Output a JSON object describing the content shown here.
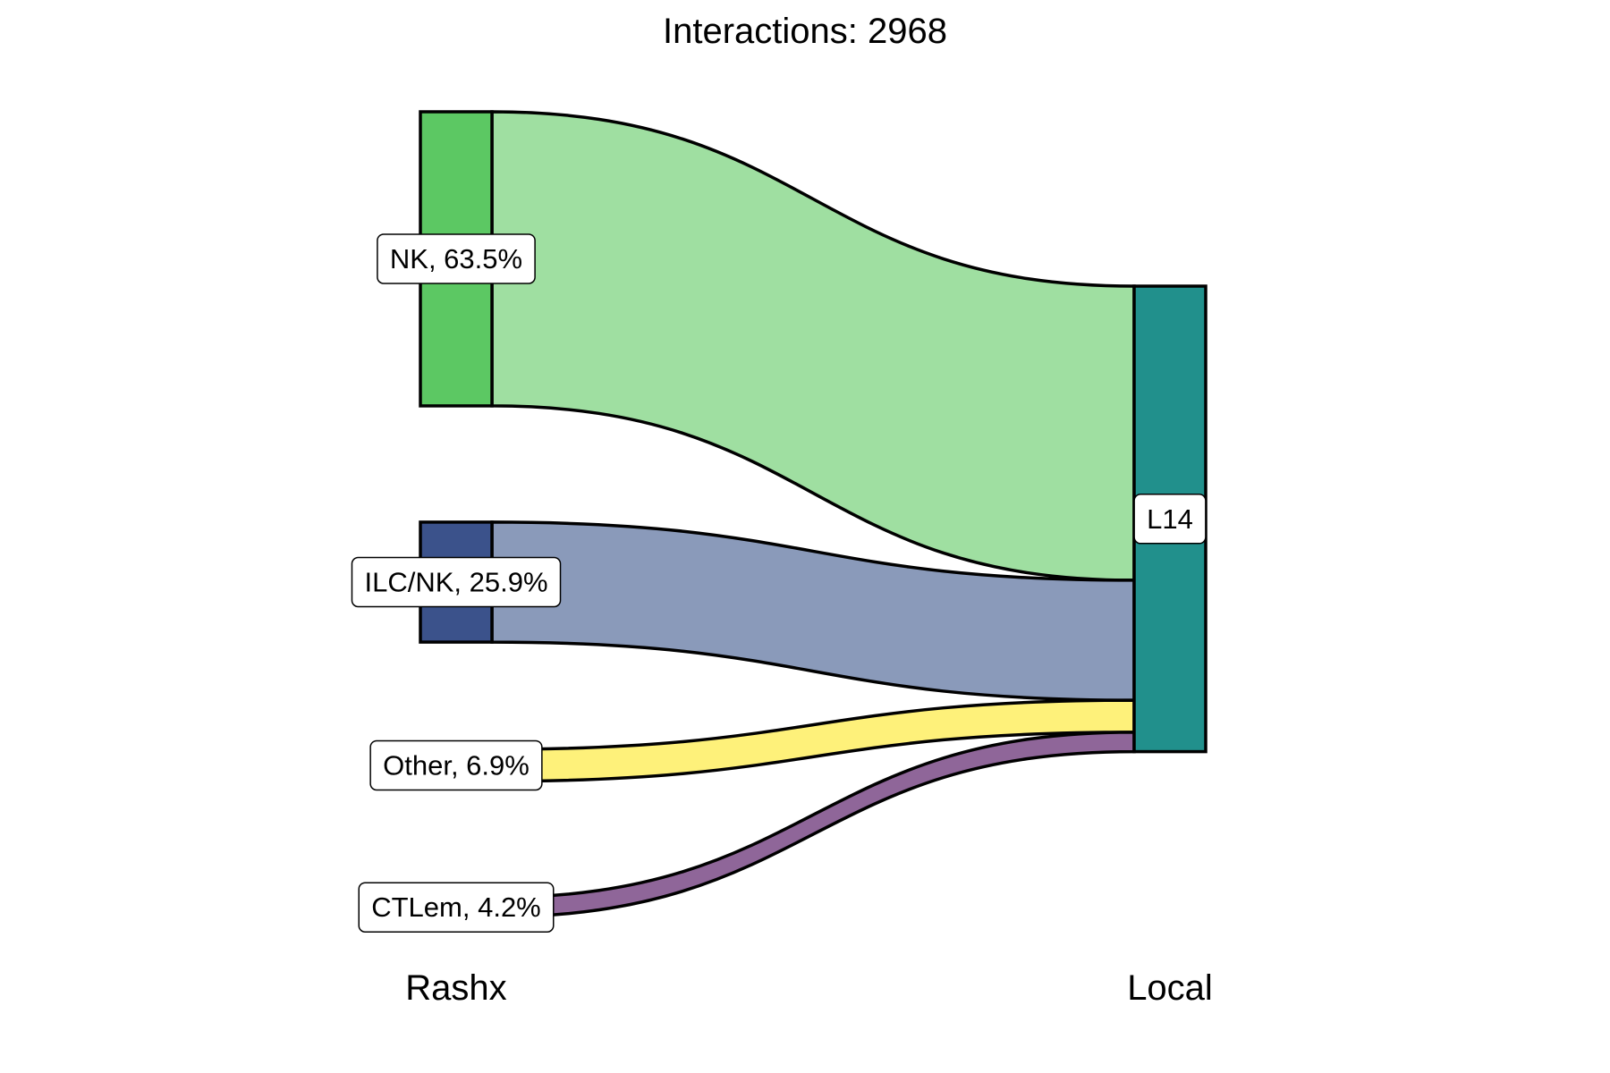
{
  "chart_data": {
    "type": "sankey",
    "title": "Interactions: 2968",
    "axes": [
      "Rashx",
      "Local"
    ],
    "total": 2968,
    "sources": [
      {
        "label": "NK, 63.5%",
        "name": "NK",
        "percent": 63.5,
        "node_color": "#5cc863",
        "flow_color": "#9fdfa1",
        "show_node": true
      },
      {
        "label": "ILC/NK, 25.9%",
        "name": "ILC/NK",
        "percent": 25.9,
        "node_color": "#3b528b",
        "flow_color": "#8a9aba",
        "show_node": true
      },
      {
        "label": "Other, 6.9%",
        "name": "Other",
        "percent": 6.9,
        "node_color": "#fde725",
        "flow_color": "#fef17a",
        "show_node": false
      },
      {
        "label": "CTLem, 4.2%",
        "name": "CTLem",
        "percent": 4.2,
        "node_color": "#440154",
        "flow_color": "#8f6699",
        "show_node": false
      }
    ],
    "targets": [
      {
        "label": "L14",
        "name": "L14",
        "percent": 100,
        "node_color": "#21908c"
      }
    ]
  }
}
